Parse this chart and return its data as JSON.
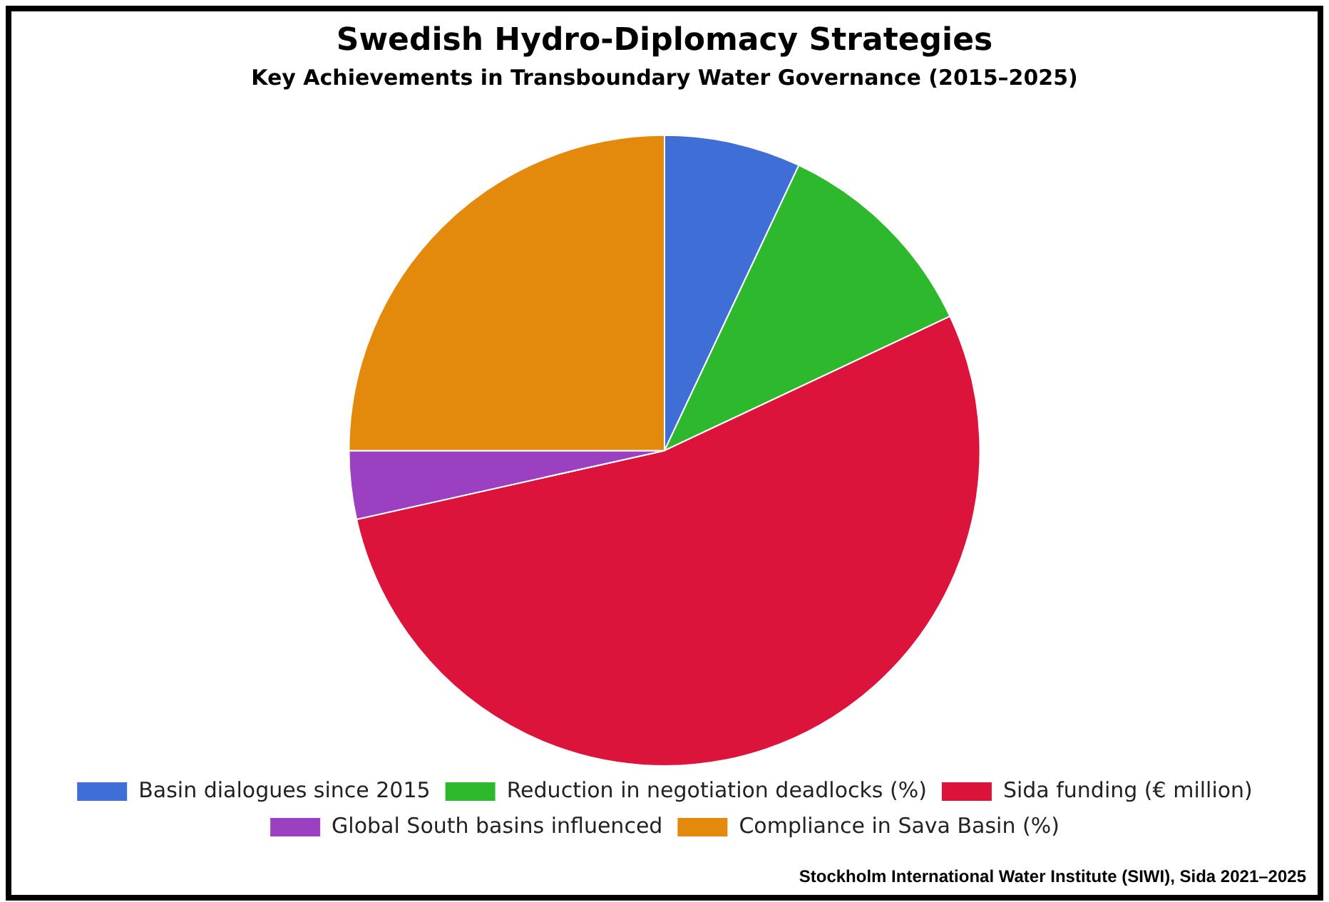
{
  "chart_data": {
    "type": "pie",
    "title": "Swedish Hydro-Diplomacy Strategies",
    "subtitle": "Key Achievements in Transboundary Water Governance (2015–2025)",
    "categories": [
      "Basin dialogues since 2015",
      "Reduction in negotiation deadlocks (%)",
      "Sida funding (€ million)",
      "Global South basins influenced",
      "Compliance in Sava Basin (%)"
    ],
    "values": [
      7,
      11,
      53.5,
      3.5,
      25
    ],
    "colors": [
      "#3f6fd6",
      "#2db82d",
      "#dc143c",
      "#9b40c0",
      "#e38a0c"
    ],
    "legend": "bottom",
    "annotations": [
      "Stockholm International Water Institute (SIWI), Sida 2021–2025"
    ]
  }
}
